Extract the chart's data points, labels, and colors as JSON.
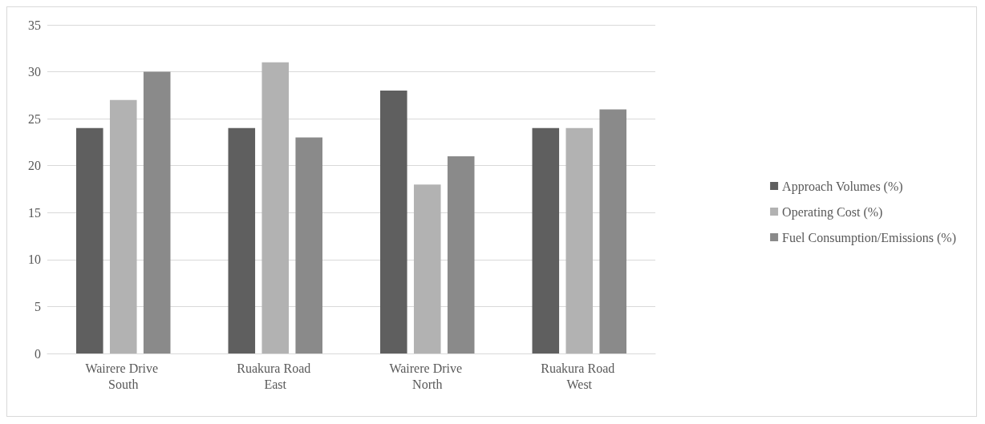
{
  "chart_data": {
    "type": "bar",
    "categories": [
      "Wairere Drive South",
      "Ruakura Road East",
      "Wairere Drive North",
      "Ruakura Road West"
    ],
    "series": [
      {
        "name": "Approach Volumes (%)",
        "color": "#5f5f5f",
        "values": [
          24,
          24,
          28,
          24
        ]
      },
      {
        "name": "Operating Cost (%)",
        "color": "#b2b2b2",
        "values": [
          27,
          31,
          18,
          24
        ]
      },
      {
        "name": "Fuel Consumption/Emissions (%)",
        "color": "#8a8a8a",
        "values": [
          30,
          23,
          21,
          26
        ]
      }
    ],
    "ylim": [
      0,
      35
    ],
    "yticks": [
      0,
      5,
      10,
      15,
      20,
      25,
      30,
      35
    ],
    "grid": "y",
    "legend": "right"
  }
}
